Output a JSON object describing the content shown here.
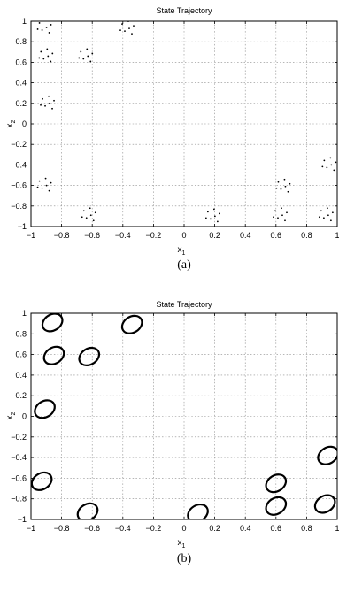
{
  "chart_data": [
    {
      "type": "scatter",
      "title": "State Trajectory",
      "xlabel": "x",
      "xlabel_sub": "1",
      "ylabel": "x",
      "ylabel_sub": "2",
      "xlim": [
        -1,
        1
      ],
      "ylim": [
        -1,
        1
      ],
      "xticks": [
        "−1",
        "−0.8",
        "−0.6",
        "−0.4",
        "−0.2",
        "0",
        "0.2",
        "0.4",
        "0.6",
        "0.8",
        "1"
      ],
      "yticks": [
        "1",
        "0.8",
        "0.6",
        "0.4",
        "0.2",
        "0",
        "−0.2",
        "−0.4",
        "−0.6",
        "−0.8",
        "−1"
      ],
      "grid": true,
      "caption": "(a)",
      "clusters": [
        {
          "x": -0.91,
          "y": 0.94
        },
        {
          "x": -0.9,
          "y": 0.66
        },
        {
          "x": -0.89,
          "y": 0.2
        },
        {
          "x": -0.91,
          "y": -0.6
        },
        {
          "x": -0.64,
          "y": 0.66
        },
        {
          "x": -0.37,
          "y": 0.93
        },
        {
          "x": -0.62,
          "y": -0.89
        },
        {
          "x": 0.19,
          "y": -0.9
        },
        {
          "x": 0.65,
          "y": -0.61
        },
        {
          "x": 0.63,
          "y": -0.89
        },
        {
          "x": 0.95,
          "y": -0.4
        },
        {
          "x": 0.93,
          "y": -0.89
        }
      ]
    },
    {
      "type": "scatter",
      "title": "State Trajectory",
      "xlabel": "x",
      "xlabel_sub": "1",
      "ylabel": "x",
      "ylabel_sub": "2",
      "xlim": [
        -1,
        1
      ],
      "ylim": [
        -1,
        1
      ],
      "xticks": [
        "−1",
        "−0.8",
        "−0.6",
        "−0.4",
        "−0.2",
        "0",
        "0.2",
        "0.4",
        "0.6",
        "0.8",
        "1"
      ],
      "yticks": [
        "1",
        "0.8",
        "0.6",
        "0.4",
        "0.2",
        "0",
        "−0.2",
        "−0.4",
        "−0.6",
        "−0.8",
        "−1"
      ],
      "grid": true,
      "caption": "(b)",
      "orbits": [
        {
          "x": -0.86,
          "y": 0.91
        },
        {
          "x": -0.85,
          "y": 0.59
        },
        {
          "x": -0.62,
          "y": 0.58
        },
        {
          "x": -0.34,
          "y": 0.89
        },
        {
          "x": -0.91,
          "y": 0.07
        },
        {
          "x": -0.93,
          "y": -0.63
        },
        {
          "x": -0.63,
          "y": -0.93
        },
        {
          "x": 0.09,
          "y": -0.94
        },
        {
          "x": 0.6,
          "y": -0.65
        },
        {
          "x": 0.6,
          "y": -0.87
        },
        {
          "x": 0.94,
          "y": -0.38
        },
        {
          "x": 0.92,
          "y": -0.85
        }
      ]
    }
  ]
}
